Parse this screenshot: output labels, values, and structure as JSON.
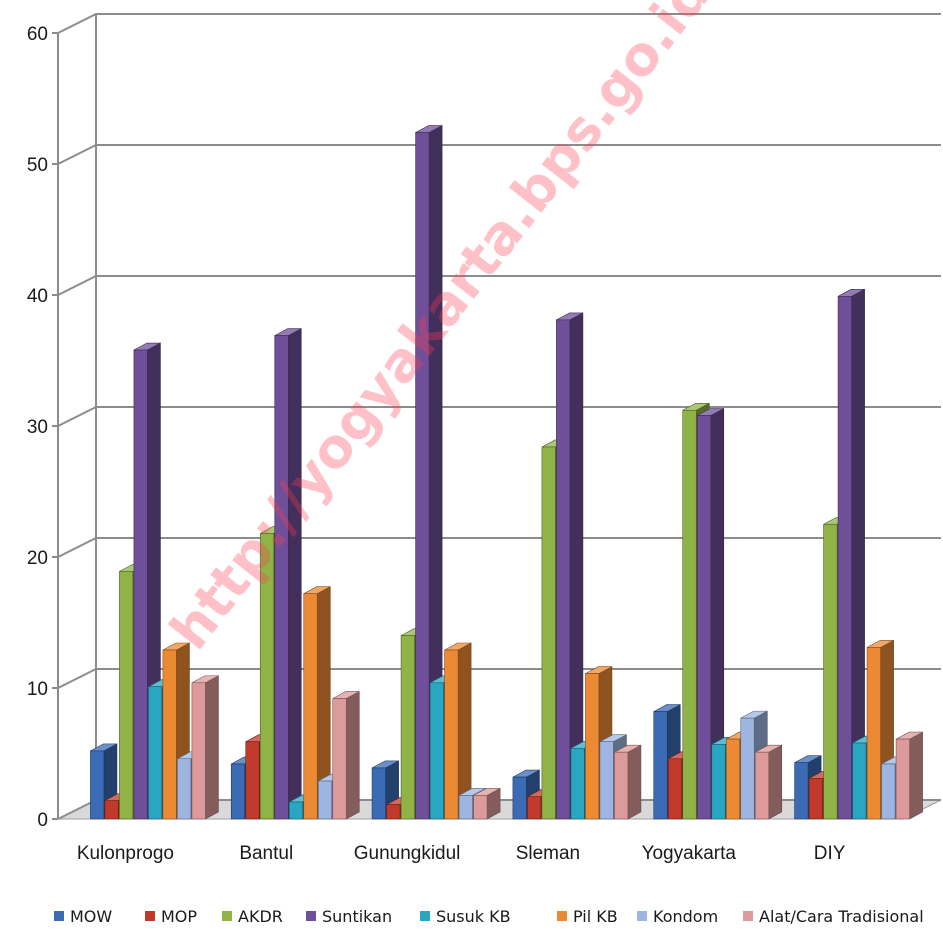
{
  "watermark": "http://yogyakarta.bps.go.id",
  "chart_data": {
    "type": "bar",
    "subtype": "3d-clustered-column",
    "categories": [
      "Kulonprogo",
      "Bantul",
      "Gunungkidul",
      "Sleman",
      "Yogyakarta",
      "DIY"
    ],
    "series": [
      {
        "name": "MOW",
        "color": "#3a6bb4",
        "values": [
          5.2,
          4.2,
          3.9,
          3.2,
          8.2,
          4.3
        ]
      },
      {
        "name": "MOP",
        "color": "#c0392b",
        "values": [
          1.4,
          5.9,
          1.1,
          1.7,
          4.6,
          3.1
        ]
      },
      {
        "name": "AKDR",
        "color": "#8fb347",
        "values": [
          18.9,
          21.8,
          14.0,
          28.4,
          31.2,
          22.5
        ]
      },
      {
        "name": "Suntikan",
        "color": "#6f4f99",
        "values": [
          35.8,
          36.9,
          52.4,
          38.1,
          30.8,
          39.9
        ]
      },
      {
        "name": "Susuk KB",
        "color": "#2aa5c2",
        "values": [
          10.1,
          1.3,
          10.4,
          5.4,
          5.7,
          5.8
        ]
      },
      {
        "name": "Pil KB",
        "color": "#ec8a33",
        "values": [
          12.9,
          17.2,
          12.9,
          11.1,
          6.1,
          13.1
        ]
      },
      {
        "name": "Kondom",
        "color": "#9db5e0",
        "values": [
          4.6,
          2.9,
          1.8,
          5.9,
          7.7,
          4.2
        ]
      },
      {
        "name": "Alat/Cara Tradisional",
        "color": "#dd9a9a",
        "values": [
          10.4,
          9.2,
          1.8,
          5.1,
          5.1,
          6.1
        ]
      }
    ],
    "ylim": [
      0,
      60
    ],
    "yticks": [
      0,
      10,
      20,
      30,
      40,
      50,
      60
    ],
    "title": "",
    "xlabel": "",
    "ylabel": "",
    "grid": true,
    "legend": "bottom"
  }
}
